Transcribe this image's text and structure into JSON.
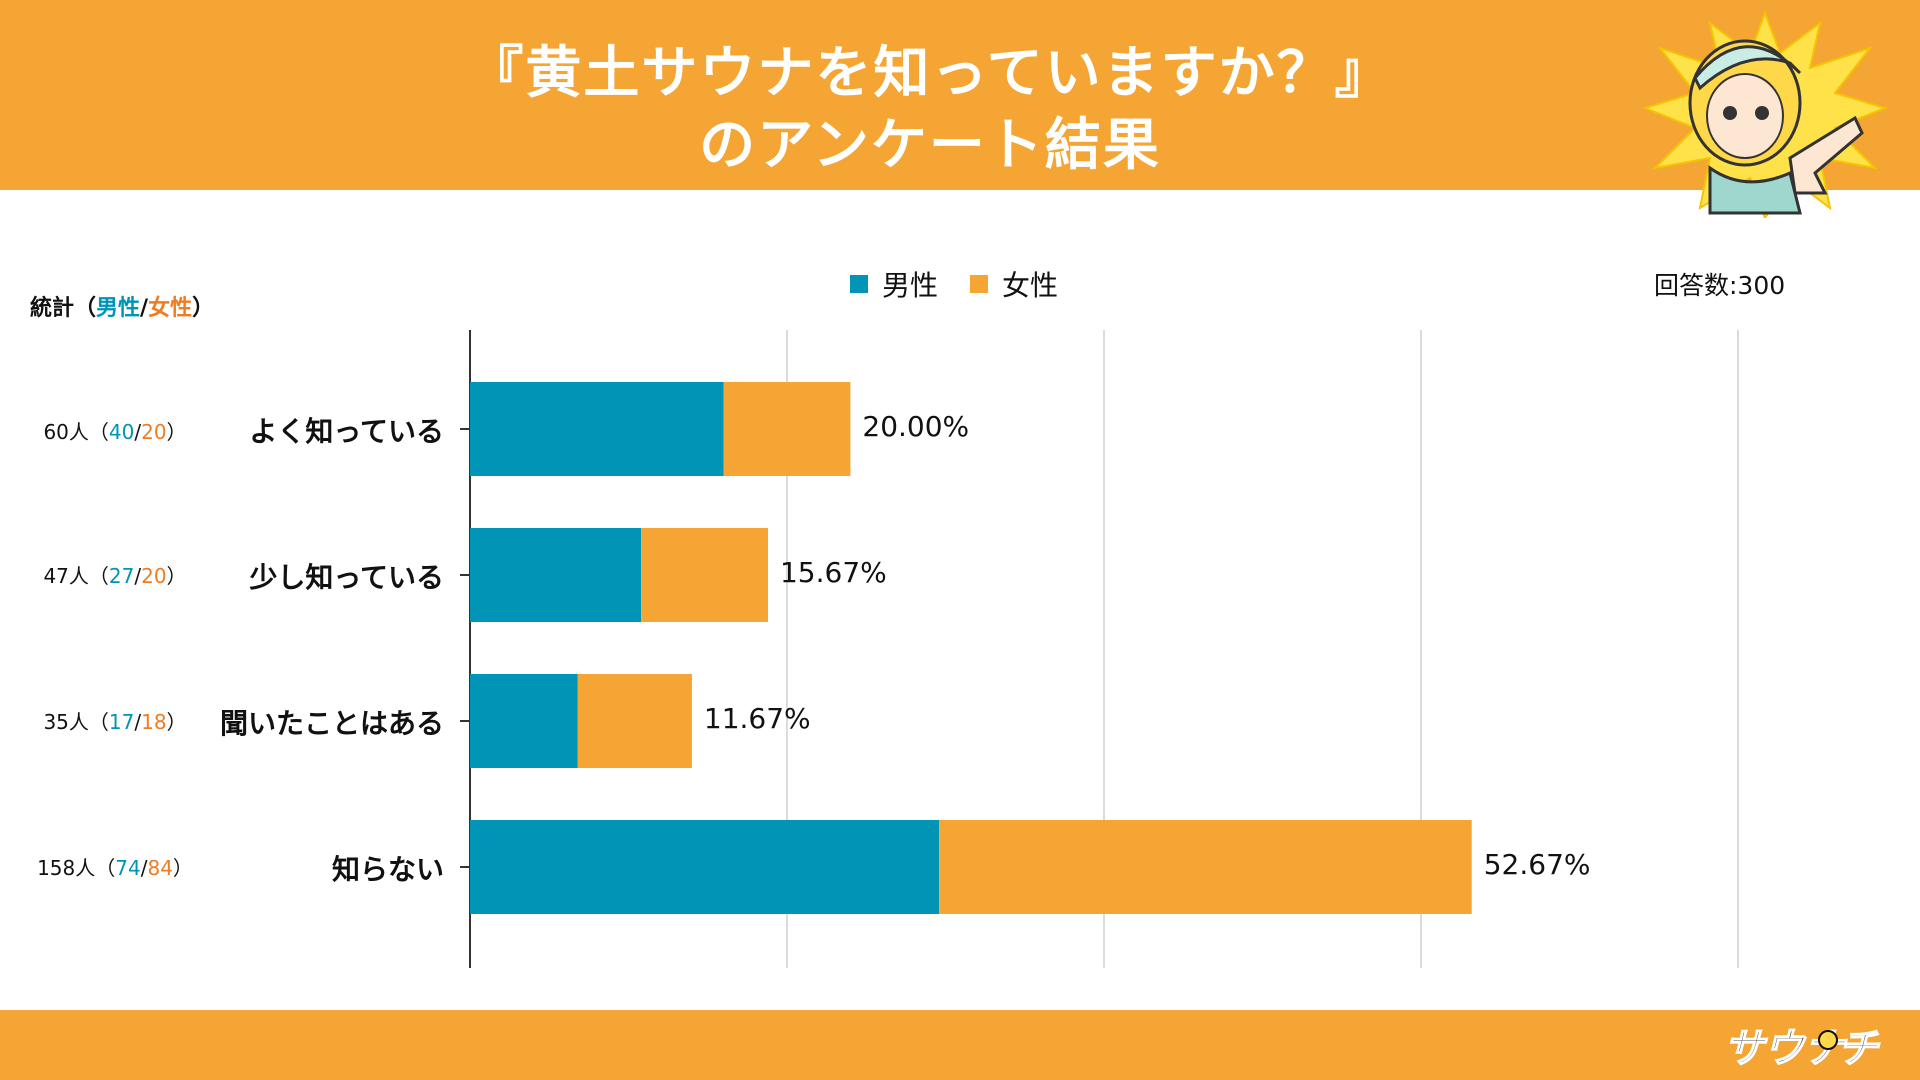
{
  "header": {
    "title_line1": "『黄土サウナを知っていますか？』",
    "title_line2": "のアンケート結果"
  },
  "legend": {
    "male": "男性",
    "female": "女性"
  },
  "total_label": "回答数:300",
  "stats_header": {
    "prefix": "統計（",
    "male": "男性",
    "slash": "/",
    "female": "女性",
    "suffix": "）"
  },
  "colors": {
    "male": "#0095b6",
    "female": "#f4a533",
    "accent": "#f4a533",
    "female_text": "#ee7d22"
  },
  "stats": [
    {
      "total": "60人（",
      "male": "40",
      "female": "20",
      "close": "）"
    },
    {
      "total": "47人（",
      "male": "27",
      "female": "20",
      "close": "）"
    },
    {
      "total": "35人（",
      "male": "17",
      "female": "18",
      "close": "）"
    },
    {
      "total": "158人（",
      "male": "74",
      "female": "84",
      "close": "）"
    }
  ],
  "chart_data": {
    "type": "bar",
    "orientation": "horizontal",
    "stacked": true,
    "categories": [
      "よく知っている",
      "少し知っている",
      "聞いたことはある",
      "知らない"
    ],
    "series": [
      {
        "name": "男性",
        "values": [
          40,
          27,
          17,
          74
        ]
      },
      {
        "name": "女性",
        "values": [
          20,
          20,
          18,
          84
        ]
      }
    ],
    "data_labels": [
      "20.00%",
      "15.67%",
      "11.67%",
      "52.67%"
    ],
    "xlim": [
      0,
      200
    ],
    "grid": true,
    "legend": "top-center"
  }
}
